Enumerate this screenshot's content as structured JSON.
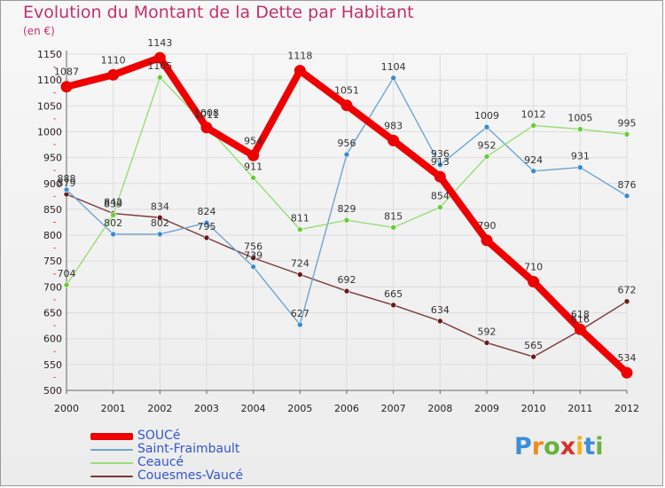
{
  "header": {
    "title": "Evolution du Montant de la Dette par Habitant",
    "subtitle": "(en €)"
  },
  "colors": {
    "title": "#c2306d",
    "grid": "#dddddd",
    "axis": "#666666"
  },
  "chart_data": {
    "type": "line",
    "title": "Evolution du Montant de la Dette par Habitant",
    "ylabel": "(en €)",
    "xlabel": "",
    "ylim": [
      500,
      1150
    ],
    "yticks": [
      500,
      550,
      600,
      650,
      700,
      750,
      800,
      850,
      900,
      950,
      1000,
      1050,
      1100,
      1150
    ],
    "categories": [
      "2000",
      "2001",
      "2002",
      "2003",
      "2004",
      "2005",
      "2006",
      "2007",
      "2008",
      "2009",
      "2010",
      "2011",
      "2012"
    ],
    "grid": true,
    "legend_position": "bottom-left",
    "series": [
      {
        "name": "SOUCé",
        "color": "#ee0000",
        "marker_color": "#ee0000",
        "width": 8,
        "values": [
          1087,
          1110,
          1143,
          1008,
          954,
          1118,
          1051,
          983,
          913,
          790,
          710,
          618,
          534
        ]
      },
      {
        "name": "Saint-Fraimbault",
        "color": "#6fa4cf",
        "marker_color": "#3a8ad2",
        "width": 1.4,
        "values": [
          888,
          802,
          802,
          824,
          739,
          627,
          956,
          1104,
          936,
          1009,
          924,
          931,
          876
        ]
      },
      {
        "name": "Ceaucé",
        "color": "#99dd77",
        "marker_color": "#66cc33",
        "width": 1.4,
        "values": [
          704,
          839,
          1105,
          1011,
          911,
          811,
          829,
          815,
          854,
          952,
          1012,
          1005,
          995
        ]
      },
      {
        "name": "Couesmes-Vaucé",
        "color": "#7a3838",
        "marker_color": "#6a1a1a",
        "width": 1.4,
        "values": [
          879,
          842,
          834,
          795,
          756,
          724,
          692,
          665,
          634,
          592,
          565,
          616,
          672
        ]
      }
    ]
  },
  "legend": {
    "items": [
      {
        "label": "SOUCé",
        "color": "#ee0000"
      },
      {
        "label": "Saint-Fraimbault",
        "color": "#6fa4cf"
      },
      {
        "label": "Ceaucé",
        "color": "#99dd77"
      },
      {
        "label": "Couesmes-Vaucé",
        "color": "#7a3838"
      }
    ],
    "text_color": "#3355cc"
  },
  "logo": {
    "letters": [
      "P",
      "r",
      "o",
      "x",
      "i",
      "t",
      "i"
    ],
    "colors": [
      "#3a8fd6",
      "#f08a1c",
      "#6ab23c",
      "#d6322b",
      "#f0b41c",
      "#3a8fd6",
      "#6ab23c"
    ]
  }
}
